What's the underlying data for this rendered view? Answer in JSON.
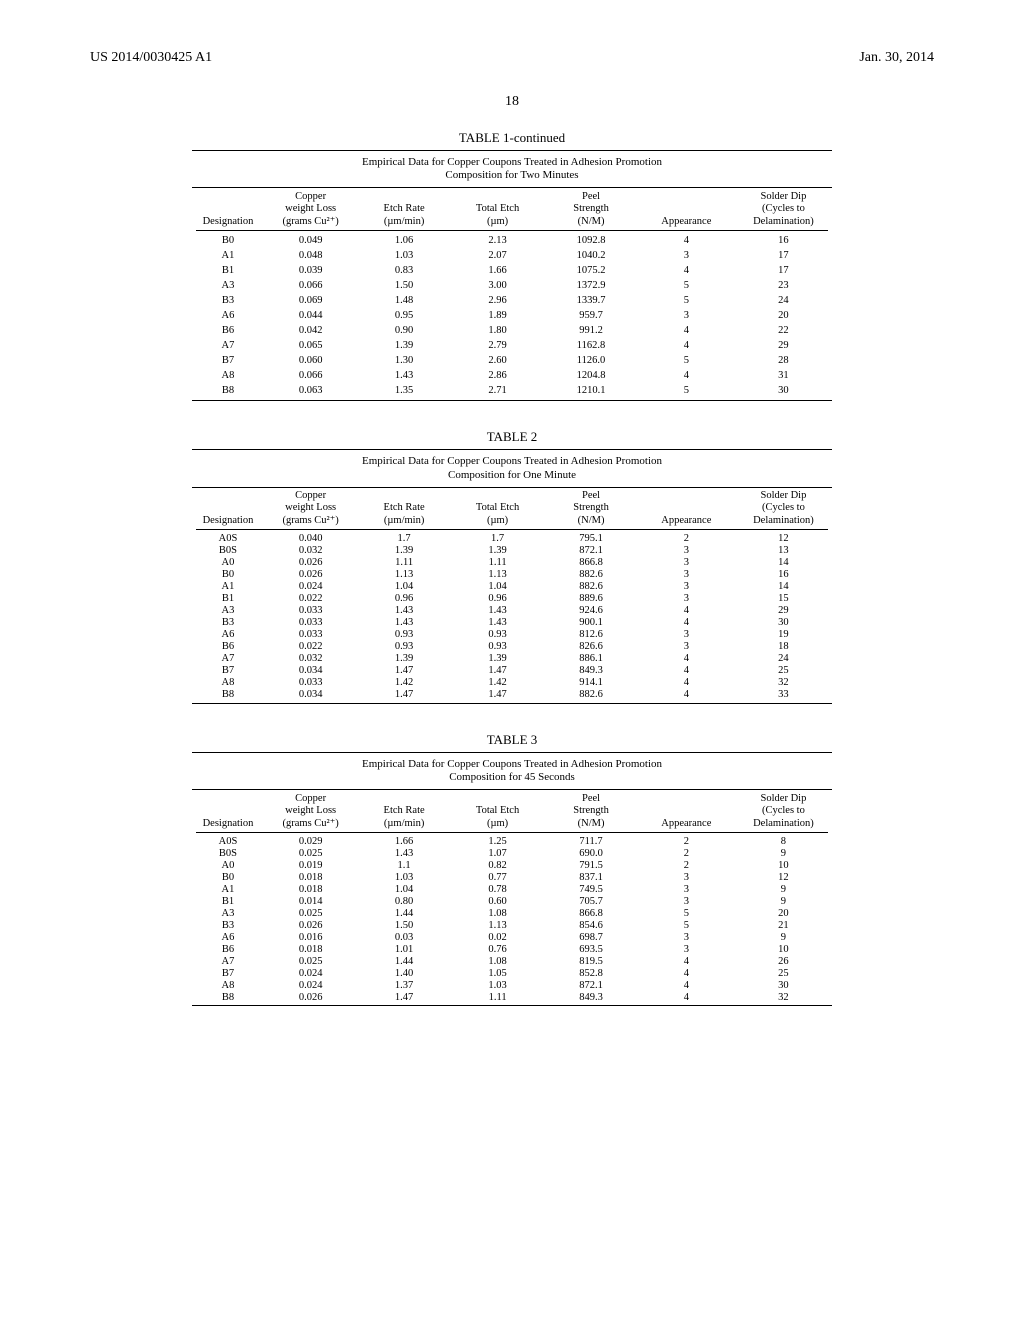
{
  "header": {
    "doc_number": "US 2014/0030425 A1",
    "date": "Jan. 30, 2014",
    "page_number": "18"
  },
  "columns": {
    "designation": "Designation",
    "copper_loss_l1": "Copper",
    "copper_loss_l2": "weight Loss",
    "copper_loss_l3": "(grams Cu²⁺)",
    "etch_rate_l1": "Etch Rate",
    "etch_rate_l2": "(µm/min)",
    "total_etch_l1": "Total Etch",
    "total_etch_l2": "(µm)",
    "peel_l1": "Peel",
    "peel_l2": "Strength",
    "peel_l3": "(N/M)",
    "appearance": "Appearance",
    "solder_l1": "Solder Dip",
    "solder_l2": "(Cycles to",
    "solder_l3": "Delamination)"
  },
  "table1": {
    "title": "TABLE 1-continued",
    "caption_l1": "Empirical Data for Copper Coupons Treated in Adhesion Promotion",
    "caption_l2": "Composition for Two Minutes",
    "rows": [
      {
        "d": "B0",
        "cu": "0.049",
        "er": "1.06",
        "te": "2.13",
        "ps": "1092.8",
        "ap": "4",
        "sd": "16"
      },
      {
        "d": "A1",
        "cu": "0.048",
        "er": "1.03",
        "te": "2.07",
        "ps": "1040.2",
        "ap": "3",
        "sd": "17"
      },
      {
        "d": "B1",
        "cu": "0.039",
        "er": "0.83",
        "te": "1.66",
        "ps": "1075.2",
        "ap": "4",
        "sd": "17"
      },
      {
        "d": "A3",
        "cu": "0.066",
        "er": "1.50",
        "te": "3.00",
        "ps": "1372.9",
        "ap": "5",
        "sd": "23"
      },
      {
        "d": "B3",
        "cu": "0.069",
        "er": "1.48",
        "te": "2.96",
        "ps": "1339.7",
        "ap": "5",
        "sd": "24"
      },
      {
        "d": "A6",
        "cu": "0.044",
        "er": "0.95",
        "te": "1.89",
        "ps": "959.7",
        "ap": "3",
        "sd": "20"
      },
      {
        "d": "B6",
        "cu": "0.042",
        "er": "0.90",
        "te": "1.80",
        "ps": "991.2",
        "ap": "4",
        "sd": "22"
      },
      {
        "d": "A7",
        "cu": "0.065",
        "er": "1.39",
        "te": "2.79",
        "ps": "1162.8",
        "ap": "4",
        "sd": "29"
      },
      {
        "d": "B7",
        "cu": "0.060",
        "er": "1.30",
        "te": "2.60",
        "ps": "1126.0",
        "ap": "5",
        "sd": "28"
      },
      {
        "d": "A8",
        "cu": "0.066",
        "er": "1.43",
        "te": "2.86",
        "ps": "1204.8",
        "ap": "4",
        "sd": "31"
      },
      {
        "d": "B8",
        "cu": "0.063",
        "er": "1.35",
        "te": "2.71",
        "ps": "1210.1",
        "ap": "5",
        "sd": "30"
      }
    ]
  },
  "table2": {
    "title": "TABLE 2",
    "caption_l1": "Empirical Data for Copper Coupons Treated in Adhesion Promotion",
    "caption_l2": "Composition for One Minute",
    "rows": [
      {
        "d": "A0S",
        "cu": "0.040",
        "er": "1.7",
        "te": "1.7",
        "ps": "795.1",
        "ap": "2",
        "sd": "12"
      },
      {
        "d": "B0S",
        "cu": "0.032",
        "er": "1.39",
        "te": "1.39",
        "ps": "872.1",
        "ap": "3",
        "sd": "13"
      },
      {
        "d": "A0",
        "cu": "0.026",
        "er": "1.11",
        "te": "1.11",
        "ps": "866.8",
        "ap": "3",
        "sd": "14"
      },
      {
        "d": "B0",
        "cu": "0.026",
        "er": "1.13",
        "te": "1.13",
        "ps": "882.6",
        "ap": "3",
        "sd": "16"
      },
      {
        "d": "A1",
        "cu": "0.024",
        "er": "1.04",
        "te": "1.04",
        "ps": "882.6",
        "ap": "3",
        "sd": "14"
      },
      {
        "d": "B1",
        "cu": "0.022",
        "er": "0.96",
        "te": "0.96",
        "ps": "889.6",
        "ap": "3",
        "sd": "15"
      },
      {
        "d": "A3",
        "cu": "0.033",
        "er": "1.43",
        "te": "1.43",
        "ps": "924.6",
        "ap": "4",
        "sd": "29"
      },
      {
        "d": "B3",
        "cu": "0.033",
        "er": "1.43",
        "te": "1.43",
        "ps": "900.1",
        "ap": "4",
        "sd": "30"
      },
      {
        "d": "A6",
        "cu": "0.033",
        "er": "0.93",
        "te": "0.93",
        "ps": "812.6",
        "ap": "3",
        "sd": "19"
      },
      {
        "d": "B6",
        "cu": "0.022",
        "er": "0.93",
        "te": "0.93",
        "ps": "826.6",
        "ap": "3",
        "sd": "18"
      },
      {
        "d": "A7",
        "cu": "0.032",
        "er": "1.39",
        "te": "1.39",
        "ps": "886.1",
        "ap": "4",
        "sd": "24"
      },
      {
        "d": "B7",
        "cu": "0.034",
        "er": "1.47",
        "te": "1.47",
        "ps": "849.3",
        "ap": "4",
        "sd": "25"
      },
      {
        "d": "A8",
        "cu": "0.033",
        "er": "1.42",
        "te": "1.42",
        "ps": "914.1",
        "ap": "4",
        "sd": "32"
      },
      {
        "d": "B8",
        "cu": "0.034",
        "er": "1.47",
        "te": "1.47",
        "ps": "882.6",
        "ap": "4",
        "sd": "33"
      }
    ]
  },
  "table3": {
    "title": "TABLE 3",
    "caption_l1": "Empirical Data for Copper Coupons Treated in Adhesion Promotion",
    "caption_l2": "Composition for 45 Seconds",
    "rows": [
      {
        "d": "A0S",
        "cu": "0.029",
        "er": "1.66",
        "te": "1.25",
        "ps": "711.7",
        "ap": "2",
        "sd": "8"
      },
      {
        "d": "B0S",
        "cu": "0.025",
        "er": "1.43",
        "te": "1.07",
        "ps": "690.0",
        "ap": "2",
        "sd": "9"
      },
      {
        "d": "A0",
        "cu": "0.019",
        "er": "1.1",
        "te": "0.82",
        "ps": "791.5",
        "ap": "2",
        "sd": "10"
      },
      {
        "d": "B0",
        "cu": "0.018",
        "er": "1.03",
        "te": "0.77",
        "ps": "837.1",
        "ap": "3",
        "sd": "12"
      },
      {
        "d": "A1",
        "cu": "0.018",
        "er": "1.04",
        "te": "0.78",
        "ps": "749.5",
        "ap": "3",
        "sd": "9"
      },
      {
        "d": "B1",
        "cu": "0.014",
        "er": "0.80",
        "te": "0.60",
        "ps": "705.7",
        "ap": "3",
        "sd": "9"
      },
      {
        "d": "A3",
        "cu": "0.025",
        "er": "1.44",
        "te": "1.08",
        "ps": "866.8",
        "ap": "5",
        "sd": "20"
      },
      {
        "d": "B3",
        "cu": "0.026",
        "er": "1.50",
        "te": "1.13",
        "ps": "854.6",
        "ap": "5",
        "sd": "21"
      },
      {
        "d": "A6",
        "cu": "0.016",
        "er": "0.03",
        "te": "0.02",
        "ps": "698.7",
        "ap": "3",
        "sd": "9"
      },
      {
        "d": "B6",
        "cu": "0.018",
        "er": "1.01",
        "te": "0.76",
        "ps": "693.5",
        "ap": "3",
        "sd": "10"
      },
      {
        "d": "A7",
        "cu": "0.025",
        "er": "1.44",
        "te": "1.08",
        "ps": "819.5",
        "ap": "4",
        "sd": "26"
      },
      {
        "d": "B7",
        "cu": "0.024",
        "er": "1.40",
        "te": "1.05",
        "ps": "852.8",
        "ap": "4",
        "sd": "25"
      },
      {
        "d": "A8",
        "cu": "0.024",
        "er": "1.37",
        "te": "1.03",
        "ps": "872.1",
        "ap": "4",
        "sd": "30"
      },
      {
        "d": "B8",
        "cu": "0.026",
        "er": "1.47",
        "te": "1.11",
        "ps": "849.3",
        "ap": "4",
        "sd": "32"
      }
    ]
  }
}
